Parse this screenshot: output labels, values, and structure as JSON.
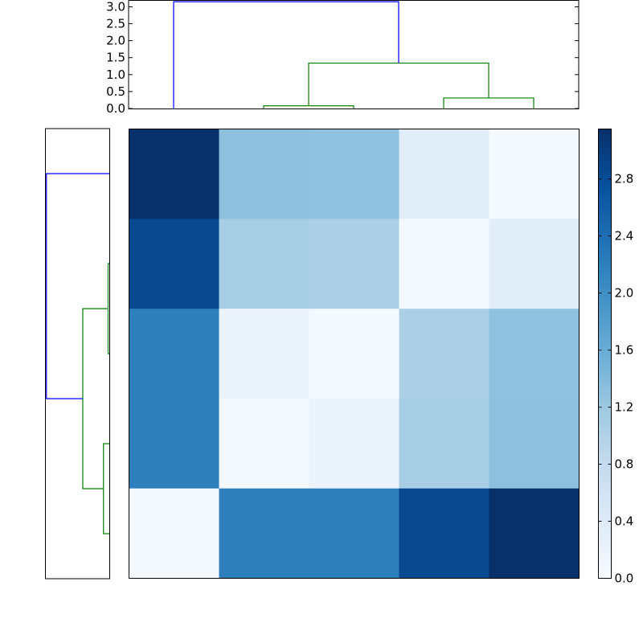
{
  "chart_data": [
    {
      "type": "dendrogram",
      "orientation": "top",
      "yticks": [
        "0.0",
        "0.5",
        "1.0",
        "1.5",
        "2.0",
        "2.5",
        "3.0"
      ],
      "ylim": [
        0,
        3.2
      ],
      "links": [
        {
          "a": 2,
          "b": 3,
          "height": 0.08,
          "color": "#008000"
        },
        {
          "a": 4,
          "b": 5,
          "height": 0.31,
          "color": "#008000"
        },
        {
          "a": 2.5,
          "b": 4.5,
          "height": 1.34,
          "color": "#008000"
        },
        {
          "a": 1,
          "b": 3.5,
          "height": 3.15,
          "color": "#0000ff"
        }
      ]
    },
    {
      "type": "dendrogram",
      "orientation": "left",
      "xlim": [
        0,
        3.2
      ],
      "links": [
        {
          "a": 2,
          "b": 3,
          "height": 0.08,
          "color": "#008000"
        },
        {
          "a": 4,
          "b": 5,
          "height": 0.31,
          "color": "#008000"
        },
        {
          "a": 2.5,
          "b": 4.5,
          "height": 1.34,
          "color": "#008000"
        },
        {
          "a": 1,
          "b": 3.5,
          "height": 3.15,
          "color": "#0000ff"
        }
      ]
    },
    {
      "type": "heatmap",
      "colormap": "Blues",
      "vmin": 0,
      "vmax": 3.15,
      "values": [
        [
          3.15,
          1.32,
          1.3,
          0.35,
          0.05
        ],
        [
          2.85,
          1.08,
          1.05,
          0.05,
          0.35
        ],
        [
          2.2,
          0.2,
          0.05,
          1.05,
          1.3
        ],
        [
          2.2,
          0.05,
          0.2,
          1.08,
          1.32
        ],
        [
          0.05,
          2.2,
          2.2,
          2.85,
          3.15
        ]
      ]
    },
    {
      "type": "colorbar",
      "colormap": "Blues",
      "range": [
        0,
        3.15
      ],
      "ticks": [
        "0.0",
        "0.4",
        "0.8",
        "1.2",
        "1.6",
        "2.0",
        "2.4",
        "2.8"
      ]
    }
  ]
}
